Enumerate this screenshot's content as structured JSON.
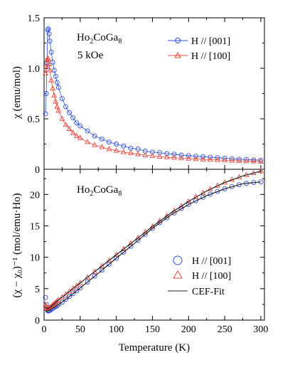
{
  "chart_data": [
    {
      "panel": "top",
      "type": "scatter",
      "compound": {
        "base": "Ho",
        "sub1": "2",
        "mid": "CoGa",
        "sub2": "8"
      },
      "condition": "5 kOe",
      "ylabel": "χ (emu/mol)",
      "xlim": [
        0,
        305
      ],
      "ylim": [
        0,
        1.5
      ],
      "yticks": [
        "0",
        "0.5",
        "1.0",
        "1.5"
      ],
      "legend_position": "top-right",
      "series": [
        {
          "name": "H // [001]",
          "marker": "circle",
          "color": "#2b4fd8",
          "x": [
            2,
            3,
            4,
            5,
            6,
            7,
            8,
            10,
            12,
            14,
            16,
            18,
            20,
            25,
            30,
            35,
            40,
            45,
            50,
            60,
            70,
            80,
            90,
            100,
            110,
            120,
            130,
            140,
            150,
            160,
            170,
            180,
            190,
            200,
            210,
            220,
            230,
            240,
            250,
            260,
            270,
            280,
            290,
            300
          ],
          "y": [
            0.55,
            0.75,
            1.05,
            1.38,
            1.39,
            1.34,
            1.27,
            1.16,
            1.06,
            0.98,
            0.92,
            0.86,
            0.81,
            0.7,
            0.62,
            0.56,
            0.51,
            0.46,
            0.43,
            0.38,
            0.33,
            0.3,
            0.27,
            0.25,
            0.23,
            0.21,
            0.2,
            0.18,
            0.17,
            0.165,
            0.155,
            0.15,
            0.14,
            0.135,
            0.13,
            0.125,
            0.12,
            0.115,
            0.11,
            0.105,
            0.1,
            0.098,
            0.094,
            0.09
          ]
        },
        {
          "name": "H // [100]",
          "marker": "triangle",
          "color": "#e8473b",
          "x": [
            2,
            3,
            4,
            5,
            6,
            7,
            8,
            10,
            12,
            14,
            16,
            18,
            20,
            25,
            30,
            35,
            40,
            45,
            50,
            60,
            70,
            80,
            90,
            100,
            110,
            120,
            130,
            140,
            150,
            160,
            170,
            180,
            190,
            200,
            210,
            220,
            230,
            240,
            250,
            260,
            270,
            280,
            290,
            300
          ],
          "y": [
            0.95,
            1.02,
            1.08,
            1.1,
            1.09,
            1.04,
            0.98,
            0.88,
            0.8,
            0.73,
            0.67,
            0.62,
            0.58,
            0.5,
            0.44,
            0.4,
            0.36,
            0.33,
            0.31,
            0.27,
            0.24,
            0.22,
            0.2,
            0.185,
            0.17,
            0.16,
            0.15,
            0.14,
            0.133,
            0.126,
            0.12,
            0.115,
            0.11,
            0.106,
            0.102,
            0.098,
            0.095,
            0.092,
            0.089,
            0.086,
            0.083,
            0.081,
            0.079,
            0.077
          ]
        }
      ]
    },
    {
      "panel": "bottom",
      "type": "scatter",
      "compound": {
        "base": "Ho",
        "sub1": "2",
        "mid": "CoGa",
        "sub2": "8"
      },
      "ylabel": "(χ − χ₀)⁻¹ (mol/emu·Ho)",
      "xlabel": "Temperature (K)",
      "xlim": [
        0,
        305
      ],
      "ylim": [
        0,
        24
      ],
      "xticks": [
        "0",
        "50",
        "100",
        "150",
        "200",
        "250",
        "300"
      ],
      "yticks": [
        "0",
        "5",
        "10",
        "15",
        "20"
      ],
      "legend_position": "bottom-right",
      "series": [
        {
          "name": "H // [001]",
          "marker": "circle",
          "color": "#2b4fd8",
          "x": [
            2,
            3,
            4,
            5,
            6,
            7,
            8,
            10,
            12,
            14,
            16,
            18,
            20,
            25,
            30,
            35,
            40,
            45,
            50,
            60,
            70,
            80,
            90,
            100,
            110,
            120,
            130,
            140,
            150,
            160,
            170,
            180,
            190,
            200,
            210,
            220,
            230,
            240,
            250,
            260,
            270,
            280,
            290,
            300
          ],
          "y": [
            3.6,
            2.5,
            1.8,
            1.5,
            1.45,
            1.5,
            1.55,
            1.7,
            1.85,
            2.0,
            2.15,
            2.3,
            2.45,
            2.85,
            3.3,
            3.75,
            4.2,
            4.65,
            5.1,
            6.05,
            7.0,
            7.95,
            8.9,
            9.85,
            10.8,
            11.75,
            12.7,
            13.65,
            14.6,
            15.5,
            16.3,
            17.05,
            17.75,
            18.4,
            19.0,
            19.55,
            20.05,
            20.5,
            20.9,
            21.25,
            21.55,
            21.75,
            21.9,
            22.0
          ]
        },
        {
          "name": "H // [100]",
          "marker": "triangle",
          "color": "#e8473b",
          "x": [
            2,
            3,
            4,
            5,
            6,
            7,
            8,
            10,
            12,
            14,
            16,
            18,
            20,
            25,
            30,
            35,
            40,
            45,
            50,
            60,
            70,
            80,
            90,
            100,
            110,
            120,
            130,
            140,
            150,
            160,
            170,
            180,
            190,
            200,
            210,
            220,
            230,
            240,
            250,
            260,
            270,
            280,
            290,
            300
          ],
          "y": [
            2.4,
            2.05,
            1.85,
            1.8,
            1.82,
            1.9,
            2.0,
            2.2,
            2.4,
            2.6,
            2.8,
            3.0,
            3.2,
            3.65,
            4.1,
            4.55,
            5.0,
            5.45,
            5.9,
            6.8,
            7.7,
            8.6,
            9.5,
            10.4,
            11.3,
            12.2,
            13.1,
            14.0,
            14.9,
            15.8,
            16.6,
            17.4,
            18.15,
            18.9,
            19.6,
            20.25,
            20.85,
            21.4,
            21.9,
            22.35,
            22.75,
            23.1,
            23.4,
            23.7
          ]
        },
        {
          "name": "CEF-Fit",
          "marker": "line",
          "color": "#222222",
          "x": [
            2,
            5,
            10,
            20,
            30,
            50,
            75,
            100,
            125,
            150,
            175,
            200,
            225,
            250,
            275,
            300
          ],
          "y": [
            1.5,
            1.45,
            1.7,
            2.45,
            3.3,
            5.1,
            7.45,
            9.85,
            12.2,
            14.6,
            16.7,
            18.4,
            19.8,
            20.9,
            21.7,
            22.0
          ]
        },
        {
          "name": "",
          "marker": "line",
          "color": "#222222",
          "x": [
            2,
            5,
            10,
            20,
            30,
            50,
            75,
            100,
            125,
            150,
            175,
            200,
            225,
            250,
            275,
            300
          ],
          "y": [
            2.0,
            1.8,
            2.2,
            3.2,
            4.1,
            5.9,
            8.15,
            10.4,
            12.65,
            14.9,
            17.0,
            18.9,
            20.55,
            21.9,
            22.95,
            23.7
          ]
        }
      ]
    }
  ]
}
